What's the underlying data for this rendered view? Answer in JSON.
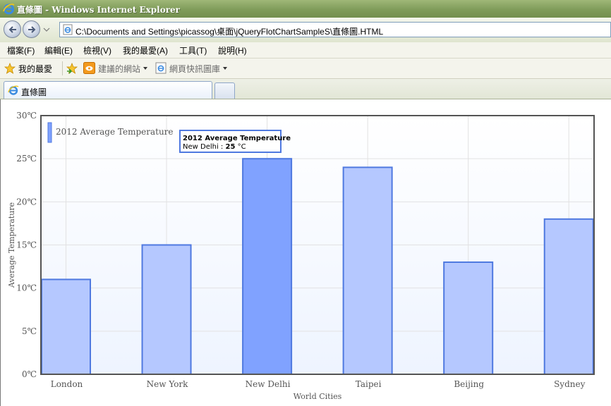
{
  "window": {
    "title": "直條圖 - Windows Internet Explorer"
  },
  "address": {
    "url": "C:\\Documents and Settings\\picassog\\桌面\\jQueryFlotChartSampleS\\直條圖.HTML"
  },
  "menu": [
    "檔案(F)",
    "編輯(E)",
    "檢視(V)",
    "我的最愛(A)",
    "工具(T)",
    "說明(H)"
  ],
  "favorites": {
    "favorites_label": "我的最愛",
    "suggested_sites": "建議的網站",
    "web_slice_gallery": "網頁快訊圖庫"
  },
  "tabs": {
    "active_label": "直條圖"
  },
  "colors": {
    "bar_fill": "#b5c8ff",
    "bar_fill_highlight": "#80a2ff",
    "bar_stroke": "#4f79e0",
    "plot_bg_top": "#ffffff",
    "plot_bg_bottom": "#eef4ff"
  },
  "chart_data": {
    "type": "bar",
    "categories": [
      "London",
      "New York",
      "New Delhi",
      "Taipei",
      "Beijing",
      "Sydney"
    ],
    "series": [
      {
        "name": "2012 Average Temperature",
        "values": [
          11,
          15,
          25,
          24,
          13,
          18
        ]
      }
    ],
    "xlabel": "World Cities",
    "ylabel": "Average Temperature",
    "ylim": [
      0,
      30
    ],
    "yticks": [
      "0℃",
      "5℃",
      "10℃",
      "15℃",
      "20℃",
      "25℃",
      "30℃"
    ],
    "grid": true,
    "legend_position": "top-left",
    "highlighted_index": 2,
    "tooltip": {
      "title": "2012 Average Temperature",
      "city": "New Delhi",
      "separator": " : ",
      "value": "25",
      "unit": " °C"
    }
  }
}
